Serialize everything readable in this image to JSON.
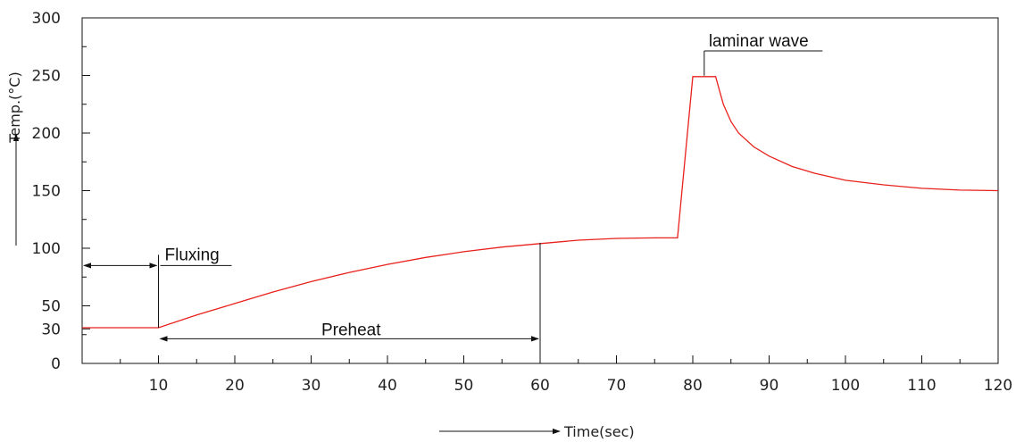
{
  "chart_data": {
    "type": "line",
    "title": "",
    "xlabel": "Time(sec)",
    "ylabel": "Temp.(°C)",
    "xlim": [
      0,
      120
    ],
    "ylim": [
      0,
      300
    ],
    "x_ticks": [
      10,
      20,
      30,
      40,
      50,
      60,
      70,
      80,
      90,
      100,
      110,
      120
    ],
    "y_ticks": [
      0,
      30,
      50,
      100,
      150,
      200,
      250,
      300
    ],
    "grid": false,
    "series_color": "#e8211c",
    "series": [
      {
        "x": [
          0,
          10,
          15,
          20,
          25,
          30,
          35,
          40,
          45,
          50,
          55,
          60,
          65,
          70,
          75,
          78,
          80,
          83,
          84,
          85,
          86,
          88,
          90,
          93,
          96,
          100,
          105,
          110,
          115,
          120
        ],
        "y": [
          31,
          31,
          42,
          52,
          62,
          71,
          79,
          86,
          92,
          97,
          101,
          104,
          107,
          108.5,
          109,
          109,
          249,
          249,
          225,
          210,
          200,
          188,
          180,
          171,
          165,
          159,
          155,
          152,
          150.5,
          150
        ]
      }
    ],
    "annotations": {
      "fluxing": {
        "label": "Fluxing",
        "from_x": 0,
        "to_x": 10,
        "y": 85
      },
      "preheat": {
        "label": "Preheat",
        "from_x": 10,
        "to_x": 60,
        "y": 2,
        "end_y": 104
      },
      "laminar_wave": {
        "label": "laminar wave",
        "x": 81.5,
        "leader_to_x": 97
      }
    }
  }
}
